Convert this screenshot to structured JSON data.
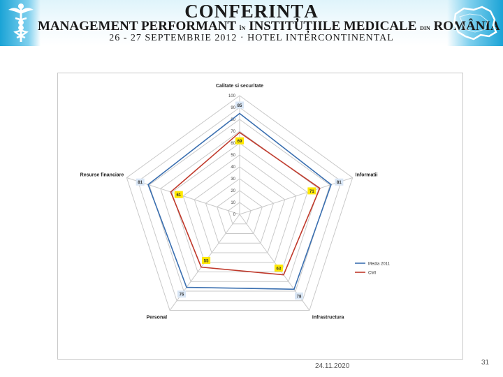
{
  "header": {
    "title": "CONFERINȚA",
    "subtitle_parts": [
      "MANAGEMENT PERFORMANT ",
      "ÎN",
      " INSTITUȚIILE MEDICALE ",
      "DIN",
      " ROMÂNIA"
    ],
    "event_line": "26 - 27 SEPTEMBRIE 2012 · HOTEL INTERCONTINENTAL",
    "left_logo_icon": "caduceus-icon",
    "right_logo_icon": "romania-map-icon",
    "banner_color": "#1aa3d6"
  },
  "chart_data": {
    "type": "radar",
    "title": "Calitate si securitate",
    "axes": [
      "Calitate si securitate",
      "Informatii",
      "Infrastructura",
      "Personal",
      "Resurse financiare"
    ],
    "rlim": [
      0,
      100
    ],
    "ticks": [
      0,
      10,
      20,
      30,
      40,
      50,
      60,
      70,
      80,
      90,
      100
    ],
    "grid": true,
    "legend_position": "right",
    "series": [
      {
        "name": "Media 2011",
        "color": "#3a6fb0",
        "values": [
          85,
          81,
          78,
          76,
          81
        ],
        "show_labels": true,
        "label_bg": "#d9e6f5"
      },
      {
        "name": "CMI",
        "color": "#c0392b",
        "values": [
          69,
          71,
          63,
          55,
          61
        ],
        "show_labels": true,
        "label_bg": "#ffe800"
      }
    ]
  },
  "footer": {
    "date": "24.11.2020",
    "page_number": "31"
  }
}
